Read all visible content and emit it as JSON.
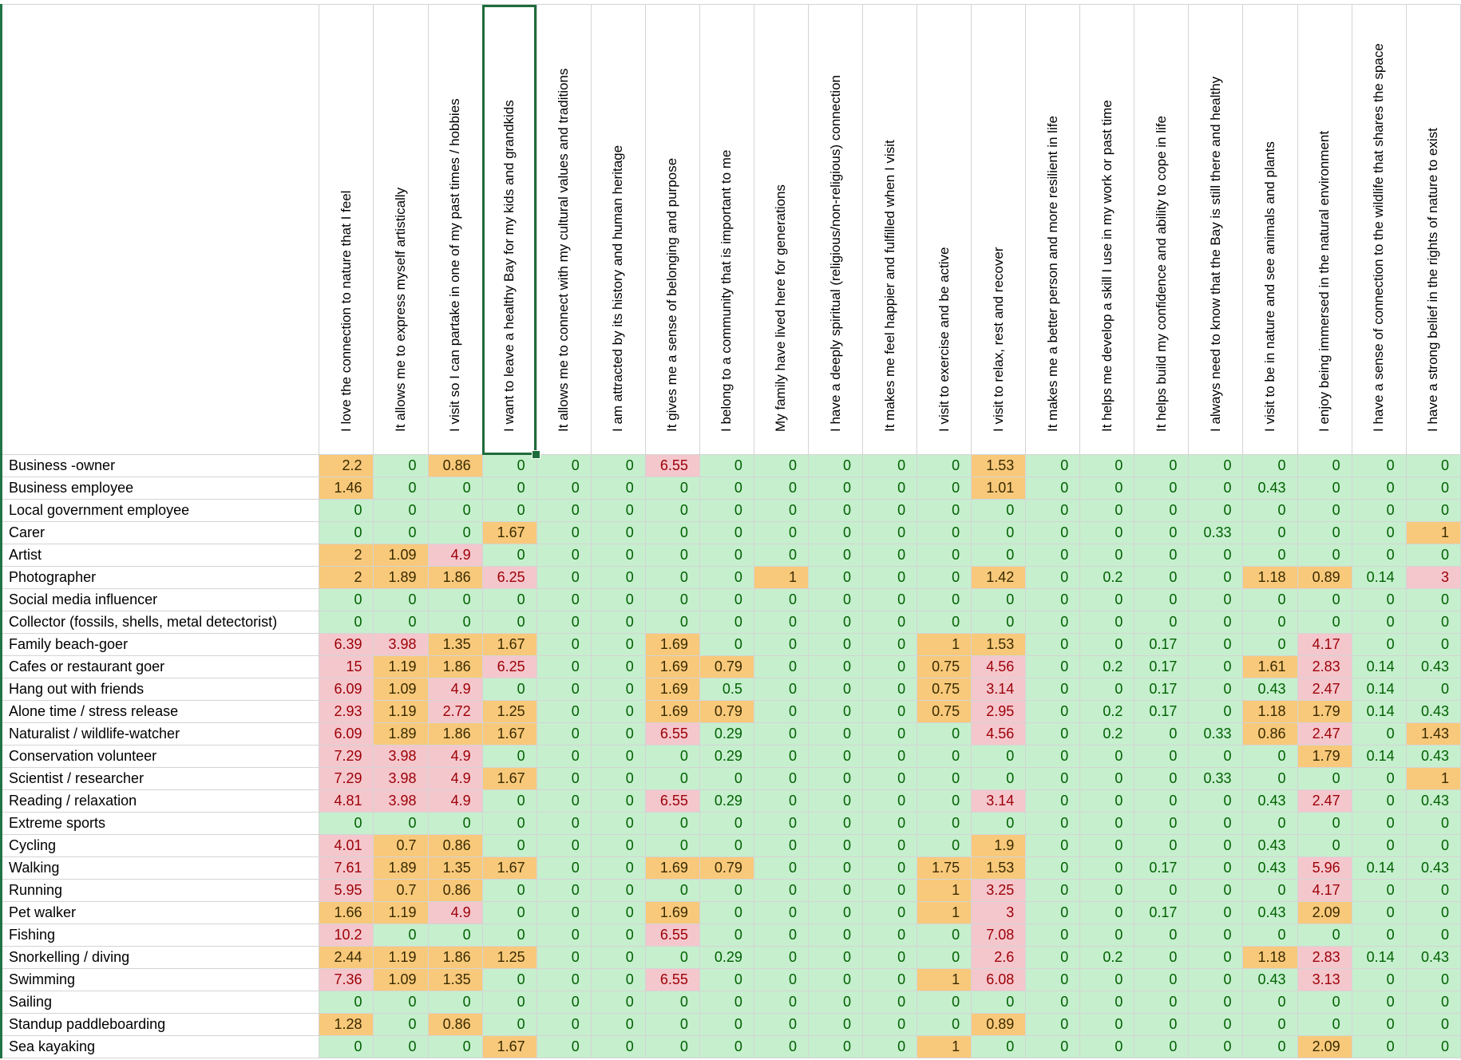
{
  "columns": [
    "I love the connection to nature that I feel",
    "It allows me to express myself artistically",
    "I visit so I can partake in one of my past times / hobbies",
    "I want to leave a healthy Bay for my kids and grandkids",
    "It allows me to connect with my cultural values and traditions",
    "I am attracted by its history and human heritage",
    "It gives me a sense of belonging and purpose",
    "I belong to a community that is important to me",
    "My family have lived here for generations",
    "I have a deeply spiritual (religious/non-religious) connection",
    "It makes me feel  happier and fulfilled when I visit",
    "I visit to exercise and be active",
    "I visit to relax, rest and recover",
    "It makes me a better person and more resilient in life",
    "It helps me develop a skill I use in my work or past time",
    "It helps build my confidence and ability to cope in life",
    "I always need to know that the Bay is still there and healthy",
    "I visit to be in nature and see animals and plants",
    "I enjoy being immersed in the natural environment",
    "I have a sense of connection to the wildlife that shares the space",
    "I have a strong belief in the rights of nature to exist"
  ],
  "selected_column_index": 3,
  "colors": {
    "green_fill": "#c6efce",
    "green_text": "#006100",
    "orange_fill": "#f8c97a",
    "red_fill": "#f4c7cd",
    "red_text": "#9c0006",
    "selection_border": "#1e6b3b"
  },
  "rows": [
    {
      "label": "Business -owner",
      "values": [
        "2.2",
        "0",
        "0.86",
        "0",
        "0",
        "0",
        "6.55",
        "0",
        "0",
        "0",
        "0",
        "0",
        "1.53",
        "0",
        "0",
        "0",
        "0",
        "0",
        "0",
        "0",
        "0"
      ],
      "fills": [
        "o",
        "g",
        "o",
        "g",
        "g",
        "g",
        "r",
        "g",
        "g",
        "g",
        "g",
        "g",
        "o",
        "g",
        "g",
        "g",
        "g",
        "g",
        "g",
        "g",
        "g"
      ]
    },
    {
      "label": "Business employee",
      "values": [
        "1.46",
        "0",
        "0",
        "0",
        "0",
        "0",
        "0",
        "0",
        "0",
        "0",
        "0",
        "0",
        "1.01",
        "0",
        "0",
        "0",
        "0",
        "0.43",
        "0",
        "0",
        "0"
      ],
      "fills": [
        "o",
        "g",
        "g",
        "g",
        "g",
        "g",
        "g",
        "g",
        "g",
        "g",
        "g",
        "g",
        "o",
        "g",
        "g",
        "g",
        "g",
        "g",
        "g",
        "g",
        "g"
      ]
    },
    {
      "label": "Local government employee",
      "values": [
        "0",
        "0",
        "0",
        "0",
        "0",
        "0",
        "0",
        "0",
        "0",
        "0",
        "0",
        "0",
        "0",
        "0",
        "0",
        "0",
        "0",
        "0",
        "0",
        "0",
        "0"
      ],
      "fills": [
        "g",
        "g",
        "g",
        "g",
        "g",
        "g",
        "g",
        "g",
        "g",
        "g",
        "g",
        "g",
        "g",
        "g",
        "g",
        "g",
        "g",
        "g",
        "g",
        "g",
        "g"
      ]
    },
    {
      "label": "Carer",
      "values": [
        "0",
        "0",
        "0",
        "1.67",
        "0",
        "0",
        "0",
        "0",
        "0",
        "0",
        "0",
        "0",
        "0",
        "0",
        "0",
        "0",
        "0.33",
        "0",
        "0",
        "0",
        "1"
      ],
      "fills": [
        "g",
        "g",
        "g",
        "o",
        "g",
        "g",
        "g",
        "g",
        "g",
        "g",
        "g",
        "g",
        "g",
        "g",
        "g",
        "g",
        "g",
        "g",
        "g",
        "g",
        "o"
      ]
    },
    {
      "label": "Artist",
      "values": [
        "2",
        "1.09",
        "4.9",
        "0",
        "0",
        "0",
        "0",
        "0",
        "0",
        "0",
        "0",
        "0",
        "0",
        "0",
        "0",
        "0",
        "0",
        "0",
        "0",
        "0",
        "0"
      ],
      "fills": [
        "o",
        "o",
        "r",
        "g",
        "g",
        "g",
        "g",
        "g",
        "g",
        "g",
        "g",
        "g",
        "g",
        "g",
        "g",
        "g",
        "g",
        "g",
        "g",
        "g",
        "g"
      ]
    },
    {
      "label": "Photographer",
      "values": [
        "2",
        "1.89",
        "1.86",
        "6.25",
        "0",
        "0",
        "0",
        "0",
        "1",
        "0",
        "0",
        "0",
        "1.42",
        "0",
        "0.2",
        "0",
        "0",
        "1.18",
        "0.89",
        "0.14",
        "3"
      ],
      "fills": [
        "o",
        "o",
        "o",
        "r",
        "g",
        "g",
        "g",
        "g",
        "o",
        "g",
        "g",
        "g",
        "o",
        "g",
        "g",
        "g",
        "g",
        "o",
        "o",
        "g",
        "r"
      ]
    },
    {
      "label": "Social media influencer",
      "values": [
        "0",
        "0",
        "0",
        "0",
        "0",
        "0",
        "0",
        "0",
        "0",
        "0",
        "0",
        "0",
        "0",
        "0",
        "0",
        "0",
        "0",
        "0",
        "0",
        "0",
        "0"
      ],
      "fills": [
        "g",
        "g",
        "g",
        "g",
        "g",
        "g",
        "g",
        "g",
        "g",
        "g",
        "g",
        "g",
        "g",
        "g",
        "g",
        "g",
        "g",
        "g",
        "g",
        "g",
        "g"
      ]
    },
    {
      "label": "Collector (fossils, shells, metal detectorist)",
      "values": [
        "0",
        "0",
        "0",
        "0",
        "0",
        "0",
        "0",
        "0",
        "0",
        "0",
        "0",
        "0",
        "0",
        "0",
        "0",
        "0",
        "0",
        "0",
        "0",
        "0",
        "0"
      ],
      "fills": [
        "g",
        "g",
        "g",
        "g",
        "g",
        "g",
        "g",
        "g",
        "g",
        "g",
        "g",
        "g",
        "g",
        "g",
        "g",
        "g",
        "g",
        "g",
        "g",
        "g",
        "g"
      ]
    },
    {
      "label": "Family beach-goer",
      "values": [
        "6.39",
        "3.98",
        "1.35",
        "1.67",
        "0",
        "0",
        "1.69",
        "0",
        "0",
        "0",
        "0",
        "1",
        "1.53",
        "0",
        "0",
        "0.17",
        "0",
        "0",
        "4.17",
        "0",
        "0"
      ],
      "fills": [
        "r",
        "r",
        "o",
        "o",
        "g",
        "g",
        "o",
        "g",
        "g",
        "g",
        "g",
        "o",
        "o",
        "g",
        "g",
        "g",
        "g",
        "g",
        "r",
        "g",
        "g"
      ]
    },
    {
      "label": "Cafes or restaurant goer",
      "values": [
        "15",
        "1.19",
        "1.86",
        "6.25",
        "0",
        "0",
        "1.69",
        "0.79",
        "0",
        "0",
        "0",
        "0.75",
        "4.56",
        "0",
        "0.2",
        "0.17",
        "0",
        "1.61",
        "2.83",
        "0.14",
        "0.43"
      ],
      "fills": [
        "r",
        "o",
        "o",
        "r",
        "g",
        "g",
        "o",
        "o",
        "g",
        "g",
        "g",
        "o",
        "r",
        "g",
        "g",
        "g",
        "g",
        "o",
        "r",
        "g",
        "g"
      ]
    },
    {
      "label": "Hang out with friends",
      "values": [
        "6.09",
        "1.09",
        "4.9",
        "0",
        "0",
        "0",
        "1.69",
        "0.5",
        "0",
        "0",
        "0",
        "0.75",
        "3.14",
        "0",
        "0",
        "0.17",
        "0",
        "0.43",
        "2.47",
        "0.14",
        "0"
      ],
      "fills": [
        "r",
        "o",
        "r",
        "g",
        "g",
        "g",
        "o",
        "g",
        "g",
        "g",
        "g",
        "o",
        "r",
        "g",
        "g",
        "g",
        "g",
        "g",
        "r",
        "g",
        "g"
      ]
    },
    {
      "label": "Alone time / stress release",
      "values": [
        "2.93",
        "1.19",
        "2.72",
        "1.25",
        "0",
        "0",
        "1.69",
        "0.79",
        "0",
        "0",
        "0",
        "0.75",
        "2.95",
        "0",
        "0.2",
        "0.17",
        "0",
        "1.18",
        "1.79",
        "0.14",
        "0.43"
      ],
      "fills": [
        "r",
        "o",
        "r",
        "o",
        "g",
        "g",
        "o",
        "o",
        "g",
        "g",
        "g",
        "o",
        "r",
        "g",
        "g",
        "g",
        "g",
        "o",
        "o",
        "g",
        "g"
      ]
    },
    {
      "label": "Naturalist / wildlife-watcher",
      "values": [
        "6.09",
        "1.89",
        "1.86",
        "1.67",
        "0",
        "0",
        "6.55",
        "0.29",
        "0",
        "0",
        "0",
        "0",
        "4.56",
        "0",
        "0.2",
        "0",
        "0.33",
        "0.86",
        "2.47",
        "0",
        "1.43"
      ],
      "fills": [
        "r",
        "o",
        "o",
        "o",
        "g",
        "g",
        "r",
        "g",
        "g",
        "g",
        "g",
        "g",
        "r",
        "g",
        "g",
        "g",
        "g",
        "o",
        "r",
        "g",
        "o"
      ]
    },
    {
      "label": "Conservation volunteer",
      "values": [
        "7.29",
        "3.98",
        "4.9",
        "0",
        "0",
        "0",
        "0",
        "0.29",
        "0",
        "0",
        "0",
        "0",
        "0",
        "0",
        "0",
        "0",
        "0",
        "0",
        "1.79",
        "0.14",
        "0.43"
      ],
      "fills": [
        "r",
        "r",
        "r",
        "g",
        "g",
        "g",
        "g",
        "g",
        "g",
        "g",
        "g",
        "g",
        "g",
        "g",
        "g",
        "g",
        "g",
        "g",
        "o",
        "g",
        "g"
      ]
    },
    {
      "label": "Scientist / researcher",
      "values": [
        "7.29",
        "3.98",
        "4.9",
        "1.67",
        "0",
        "0",
        "0",
        "0",
        "0",
        "0",
        "0",
        "0",
        "0",
        "0",
        "0",
        "0",
        "0.33",
        "0",
        "0",
        "0",
        "1"
      ],
      "fills": [
        "r",
        "r",
        "r",
        "o",
        "g",
        "g",
        "g",
        "g",
        "g",
        "g",
        "g",
        "g",
        "g",
        "g",
        "g",
        "g",
        "g",
        "g",
        "g",
        "g",
        "o"
      ]
    },
    {
      "label": "Reading / relaxation",
      "values": [
        "4.81",
        "3.98",
        "4.9",
        "0",
        "0",
        "0",
        "6.55",
        "0.29",
        "0",
        "0",
        "0",
        "0",
        "3.14",
        "0",
        "0",
        "0",
        "0",
        "0.43",
        "2.47",
        "0",
        "0.43"
      ],
      "fills": [
        "r",
        "r",
        "r",
        "g",
        "g",
        "g",
        "r",
        "g",
        "g",
        "g",
        "g",
        "g",
        "r",
        "g",
        "g",
        "g",
        "g",
        "g",
        "r",
        "g",
        "g"
      ]
    },
    {
      "label": "Extreme sports",
      "values": [
        "0",
        "0",
        "0",
        "0",
        "0",
        "0",
        "0",
        "0",
        "0",
        "0",
        "0",
        "0",
        "0",
        "0",
        "0",
        "0",
        "0",
        "0",
        "0",
        "0",
        "0"
      ],
      "fills": [
        "g",
        "g",
        "g",
        "g",
        "g",
        "g",
        "g",
        "g",
        "g",
        "g",
        "g",
        "g",
        "g",
        "g",
        "g",
        "g",
        "g",
        "g",
        "g",
        "g",
        "g"
      ]
    },
    {
      "label": "Cycling",
      "values": [
        "4.01",
        "0.7",
        "0.86",
        "0",
        "0",
        "0",
        "0",
        "0",
        "0",
        "0",
        "0",
        "0",
        "1.9",
        "0",
        "0",
        "0",
        "0",
        "0.43",
        "0",
        "0",
        "0"
      ],
      "fills": [
        "r",
        "o",
        "o",
        "g",
        "g",
        "g",
        "g",
        "g",
        "g",
        "g",
        "g",
        "g",
        "o",
        "g",
        "g",
        "g",
        "g",
        "g",
        "g",
        "g",
        "g"
      ]
    },
    {
      "label": "Walking",
      "values": [
        "7.61",
        "1.89",
        "1.35",
        "1.67",
        "0",
        "0",
        "1.69",
        "0.79",
        "0",
        "0",
        "0",
        "1.75",
        "1.53",
        "0",
        "0",
        "0.17",
        "0",
        "0.43",
        "5.96",
        "0.14",
        "0.43"
      ],
      "fills": [
        "r",
        "o",
        "o",
        "o",
        "g",
        "g",
        "o",
        "o",
        "g",
        "g",
        "g",
        "o",
        "o",
        "g",
        "g",
        "g",
        "g",
        "g",
        "r",
        "g",
        "g"
      ]
    },
    {
      "label": "Running",
      "values": [
        "5.95",
        "0.7",
        "0.86",
        "0",
        "0",
        "0",
        "0",
        "0",
        "0",
        "0",
        "0",
        "1",
        "3.25",
        "0",
        "0",
        "0",
        "0",
        "0",
        "4.17",
        "0",
        "0"
      ],
      "fills": [
        "r",
        "o",
        "o",
        "g",
        "g",
        "g",
        "g",
        "g",
        "g",
        "g",
        "g",
        "o",
        "r",
        "g",
        "g",
        "g",
        "g",
        "g",
        "r",
        "g",
        "g"
      ]
    },
    {
      "label": "Pet walker",
      "values": [
        "1.66",
        "1.19",
        "4.9",
        "0",
        "0",
        "0",
        "1.69",
        "0",
        "0",
        "0",
        "0",
        "1",
        "3",
        "0",
        "0",
        "0.17",
        "0",
        "0.43",
        "2.09",
        "0",
        "0"
      ],
      "fills": [
        "o",
        "o",
        "r",
        "g",
        "g",
        "g",
        "o",
        "g",
        "g",
        "g",
        "g",
        "o",
        "r",
        "g",
        "g",
        "g",
        "g",
        "g",
        "o",
        "g",
        "g"
      ]
    },
    {
      "label": "Fishing",
      "values": [
        "10.2",
        "0",
        "0",
        "0",
        "0",
        "0",
        "6.55",
        "0",
        "0",
        "0",
        "0",
        "0",
        "7.08",
        "0",
        "0",
        "0",
        "0",
        "0",
        "0",
        "0",
        "0"
      ],
      "fills": [
        "r",
        "g",
        "g",
        "g",
        "g",
        "g",
        "r",
        "g",
        "g",
        "g",
        "g",
        "g",
        "r",
        "g",
        "g",
        "g",
        "g",
        "g",
        "g",
        "g",
        "g"
      ]
    },
    {
      "label": "Snorkelling / diving",
      "values": [
        "2.44",
        "1.19",
        "1.86",
        "1.25",
        "0",
        "0",
        "0",
        "0.29",
        "0",
        "0",
        "0",
        "0",
        "2.6",
        "0",
        "0.2",
        "0",
        "0",
        "1.18",
        "2.83",
        "0.14",
        "0.43"
      ],
      "fills": [
        "o",
        "o",
        "o",
        "o",
        "g",
        "g",
        "g",
        "g",
        "g",
        "g",
        "g",
        "g",
        "r",
        "g",
        "g",
        "g",
        "g",
        "o",
        "r",
        "g",
        "g"
      ]
    },
    {
      "label": "Swimming",
      "values": [
        "7.36",
        "1.09",
        "1.35",
        "0",
        "0",
        "0",
        "6.55",
        "0",
        "0",
        "0",
        "0",
        "1",
        "6.08",
        "0",
        "0",
        "0",
        "0",
        "0.43",
        "3.13",
        "0",
        "0"
      ],
      "fills": [
        "r",
        "o",
        "o",
        "g",
        "g",
        "g",
        "r",
        "g",
        "g",
        "g",
        "g",
        "o",
        "r",
        "g",
        "g",
        "g",
        "g",
        "g",
        "r",
        "g",
        "g"
      ]
    },
    {
      "label": "Sailing",
      "values": [
        "0",
        "0",
        "0",
        "0",
        "0",
        "0",
        "0",
        "0",
        "0",
        "0",
        "0",
        "0",
        "0",
        "0",
        "0",
        "0",
        "0",
        "0",
        "0",
        "0",
        "0"
      ],
      "fills": [
        "g",
        "g",
        "g",
        "g",
        "g",
        "g",
        "g",
        "g",
        "g",
        "g",
        "g",
        "g",
        "g",
        "g",
        "g",
        "g",
        "g",
        "g",
        "g",
        "g",
        "g"
      ]
    },
    {
      "label": "Standup paddleboarding",
      "values": [
        "1.28",
        "0",
        "0.86",
        "0",
        "0",
        "0",
        "0",
        "0",
        "0",
        "0",
        "0",
        "0",
        "0.89",
        "0",
        "0",
        "0",
        "0",
        "0",
        "0",
        "0",
        "0"
      ],
      "fills": [
        "o",
        "g",
        "o",
        "g",
        "g",
        "g",
        "g",
        "g",
        "g",
        "g",
        "g",
        "g",
        "o",
        "g",
        "g",
        "g",
        "g",
        "g",
        "g",
        "g",
        "g"
      ]
    },
    {
      "label": "Sea kayaking",
      "values": [
        "0",
        "0",
        "0",
        "1.67",
        "0",
        "0",
        "0",
        "0",
        "0",
        "0",
        "0",
        "1",
        "0",
        "0",
        "0",
        "0",
        "0",
        "0",
        "2.09",
        "0",
        "0"
      ],
      "fills": [
        "g",
        "g",
        "g",
        "o",
        "g",
        "g",
        "g",
        "g",
        "g",
        "g",
        "g",
        "o",
        "g",
        "g",
        "g",
        "g",
        "g",
        "g",
        "o",
        "g",
        "g"
      ]
    }
  ]
}
